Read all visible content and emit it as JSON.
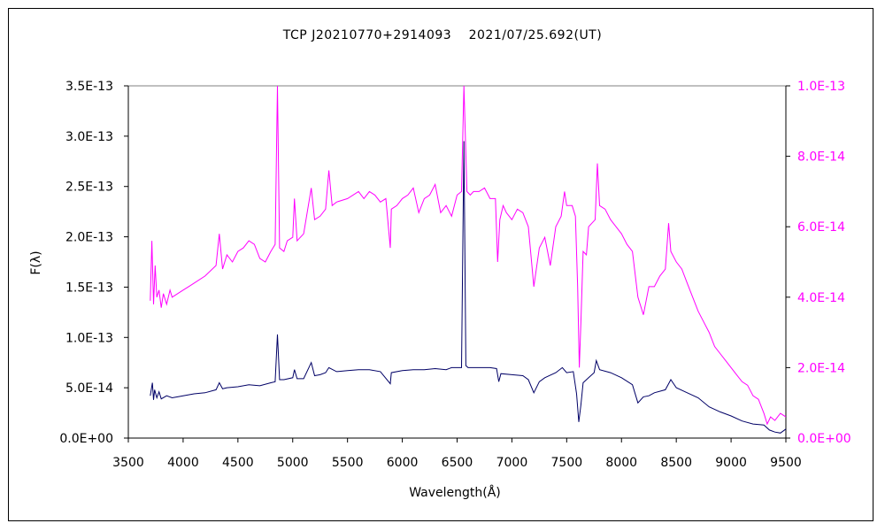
{
  "chart_data": {
    "type": "line",
    "title": "TCP J20210770+2914093　 2021/07/25.692(UT)",
    "xlabel": "Wavelength(Å)",
    "ylabel": "F(λ)",
    "xlim": [
      3500,
      9500
    ],
    "ylim_left": [
      0,
      3.5e-13
    ],
    "ylim_right": [
      0,
      1e-13
    ],
    "x_ticks": [
      "3500",
      "4000",
      "4500",
      "5000",
      "5500",
      "6000",
      "6500",
      "7000",
      "7500",
      "8000",
      "8500",
      "9000",
      "9500"
    ],
    "y_ticks_left": [
      "0.0E+00",
      "5.0E-14",
      "1.0E-13",
      "1.5E-13",
      "2.0E-13",
      "2.5E-13",
      "3.0E-13",
      "3.5E-13"
    ],
    "y_ticks_right": [
      "0.0E+00",
      "2.0E-14",
      "4.0E-14",
      "6.0E-14",
      "8.0E-14",
      "1.0E-13"
    ],
    "grid": false,
    "series": [
      {
        "axis": "left",
        "color": "#000066",
        "x": [
          3700,
          3720,
          3730,
          3740,
          3760,
          3780,
          3800,
          3850,
          3900,
          3950,
          4000,
          4100,
          4200,
          4300,
          4330,
          4360,
          4400,
          4500,
          4600,
          4700,
          4800,
          4840,
          4861,
          4880,
          4920,
          5000,
          5016,
          5040,
          5100,
          5169,
          5200,
          5250,
          5300,
          5330,
          5400,
          5500,
          5600,
          5700,
          5800,
          5890,
          5900,
          6000,
          6100,
          6200,
          6300,
          6400,
          6450,
          6500,
          6540,
          6562,
          6580,
          6600,
          6700,
          6800,
          6860,
          6880,
          6900,
          7000,
          7100,
          7150,
          7200,
          7250,
          7300,
          7400,
          7460,
          7500,
          7560,
          7590,
          7610,
          7630,
          7650,
          7700,
          7750,
          7770,
          7800,
          7900,
          8000,
          8100,
          8150,
          8200,
          8250,
          8300,
          8400,
          8450,
          8500,
          8600,
          8700,
          8800,
          8900,
          9000,
          9100,
          9200,
          9300,
          9350,
          9400,
          9450,
          9500
        ],
        "y": [
          4.2e-14,
          5.5e-14,
          3.8e-14,
          4.8e-14,
          4e-14,
          4.6e-14,
          3.9e-14,
          4.2e-14,
          4e-14,
          4.1e-14,
          4.2e-14,
          4.4e-14,
          4.5e-14,
          4.8e-14,
          5.5e-14,
          4.9e-14,
          5e-14,
          5.1e-14,
          5.3e-14,
          5.2e-14,
          5.5e-14,
          5.6e-14,
          1.03e-13,
          5.8e-14,
          5.8e-14,
          6e-14,
          6.8e-14,
          5.9e-14,
          5.9e-14,
          7.5e-14,
          6.2e-14,
          6.3e-14,
          6.5e-14,
          7e-14,
          6.6e-14,
          6.7e-14,
          6.8e-14,
          6.8e-14,
          6.6e-14,
          5.4e-14,
          6.5e-14,
          6.7e-14,
          6.8e-14,
          6.8e-14,
          6.9e-14,
          6.8e-14,
          7e-14,
          7e-14,
          7e-14,
          2.95e-13,
          7.2e-14,
          7e-14,
          7e-14,
          7e-14,
          6.9e-14,
          5.6e-14,
          6.4e-14,
          6.3e-14,
          6.2e-14,
          5.8e-14,
          4.5e-14,
          5.6e-14,
          6e-14,
          6.5e-14,
          7e-14,
          6.5e-14,
          6.6e-14,
          4.4e-14,
          1.6e-14,
          3.3e-14,
          5.5e-14,
          6e-14,
          6.5e-14,
          7.7e-14,
          6.8e-14,
          6.5e-14,
          6e-14,
          5.3e-14,
          3.5e-14,
          4.1e-14,
          4.2e-14,
          4.5e-14,
          4.8e-14,
          5.8e-14,
          5e-14,
          4.5e-14,
          4e-14,
          3.1e-14,
          2.6e-14,
          2.2e-14,
          1.7e-14,
          1.4e-14,
          1.3e-14,
          8e-15,
          6e-15,
          5e-15,
          9e-15
        ]
      },
      {
        "axis": "right",
        "color": "#ff00ff",
        "x": [
          3700,
          3715,
          3730,
          3745,
          3760,
          3780,
          3800,
          3820,
          3850,
          3880,
          3900,
          3950,
          4000,
          4050,
          4100,
          4200,
          4300,
          4330,
          4360,
          4400,
          4450,
          4500,
          4550,
          4600,
          4650,
          4700,
          4750,
          4800,
          4840,
          4861,
          4880,
          4920,
          4950,
          5000,
          5016,
          5040,
          5100,
          5169,
          5200,
          5250,
          5300,
          5330,
          5360,
          5400,
          5500,
          5600,
          5650,
          5700,
          5750,
          5800,
          5850,
          5890,
          5900,
          5950,
          6000,
          6050,
          6100,
          6150,
          6200,
          6250,
          6300,
          6350,
          6400,
          6450,
          6500,
          6540,
          6562,
          6590,
          6620,
          6650,
          6700,
          6750,
          6800,
          6850,
          6870,
          6890,
          6920,
          6950,
          7000,
          7050,
          7100,
          7150,
          7200,
          7250,
          7300,
          7350,
          7400,
          7450,
          7480,
          7500,
          7550,
          7580,
          7600,
          7615,
          7630,
          7650,
          7680,
          7700,
          7730,
          7760,
          7780,
          7800,
          7850,
          7900,
          7950,
          8000,
          8050,
          8100,
          8150,
          8200,
          8250,
          8300,
          8350,
          8400,
          8430,
          8450,
          8500,
          8550,
          8600,
          8650,
          8700,
          8750,
          8800,
          8850,
          8900,
          8950,
          9000,
          9050,
          9100,
          9150,
          9200,
          9250,
          9300,
          9330,
          9360,
          9400,
          9450,
          9500
        ],
        "y": [
          3.9e-14,
          5.6e-14,
          3.8e-14,
          4.9e-14,
          4e-14,
          4.2e-14,
          3.7e-14,
          4.1e-14,
          3.8e-14,
          4.2e-14,
          4e-14,
          4.1e-14,
          4.2e-14,
          4.3e-14,
          4.4e-14,
          4.6e-14,
          4.9e-14,
          5.8e-14,
          4.8e-14,
          5.2e-14,
          5e-14,
          5.3e-14,
          5.4e-14,
          5.6e-14,
          5.5e-14,
          5.1e-14,
          5e-14,
          5.3e-14,
          5.5e-14,
          1.05e-13,
          5.4e-14,
          5.3e-14,
          5.6e-14,
          5.7e-14,
          6.8e-14,
          5.6e-14,
          5.8e-14,
          7.1e-14,
          6.2e-14,
          6.3e-14,
          6.5e-14,
          7.6e-14,
          6.6e-14,
          6.7e-14,
          6.8e-14,
          7e-14,
          6.8e-14,
          7e-14,
          6.9e-14,
          6.7e-14,
          6.8e-14,
          5.4e-14,
          6.5e-14,
          6.6e-14,
          6.8e-14,
          6.9e-14,
          7.1e-14,
          6.4e-14,
          6.8e-14,
          6.9e-14,
          7.2e-14,
          6.4e-14,
          6.6e-14,
          6.3e-14,
          6.9e-14,
          7e-14,
          1.05e-13,
          7e-14,
          6.9e-14,
          7e-14,
          7e-14,
          7.1e-14,
          6.8e-14,
          6.8e-14,
          5e-14,
          6.2e-14,
          6.6e-14,
          6.4e-14,
          6.2e-14,
          6.5e-14,
          6.4e-14,
          6e-14,
          4.3e-14,
          5.4e-14,
          5.7e-14,
          4.9e-14,
          6e-14,
          6.3e-14,
          7e-14,
          6.6e-14,
          6.6e-14,
          6.3e-14,
          4.3e-14,
          2e-14,
          3.3e-14,
          5.3e-14,
          5.2e-14,
          6e-14,
          6.1e-14,
          6.2e-14,
          7.8e-14,
          6.6e-14,
          6.5e-14,
          6.2e-14,
          6e-14,
          5.8e-14,
          5.5e-14,
          5.3e-14,
          4e-14,
          3.5e-14,
          4.3e-14,
          4.3e-14,
          4.6e-14,
          4.8e-14,
          6.1e-14,
          5.3e-14,
          5e-14,
          4.8e-14,
          4.4e-14,
          4e-14,
          3.6e-14,
          3.3e-14,
          3e-14,
          2.6e-14,
          2.4e-14,
          2.2e-14,
          2e-14,
          1.8e-14,
          1.6e-14,
          1.5e-14,
          1.2e-14,
          1.1e-14,
          7e-15,
          4e-15,
          6e-15,
          5e-15,
          7e-15,
          6e-15
        ]
      }
    ]
  }
}
